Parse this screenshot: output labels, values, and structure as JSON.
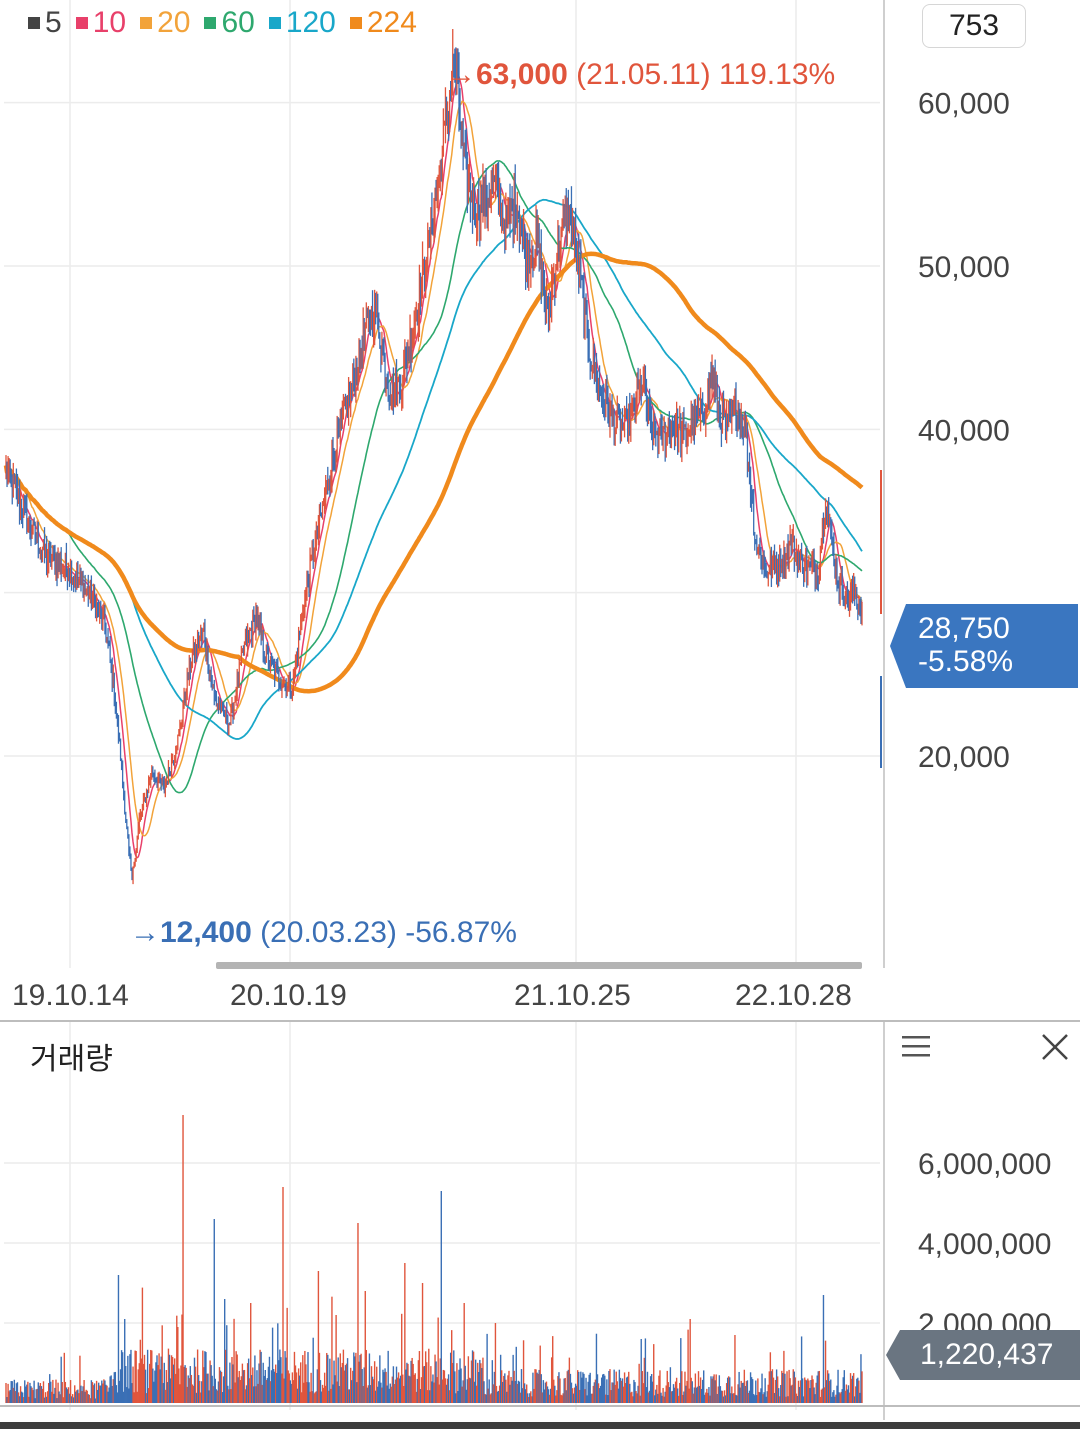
{
  "legend": [
    {
      "label": "5",
      "color": "#444444"
    },
    {
      "label": "10",
      "color": "#e8406a"
    },
    {
      "label": "20",
      "color": "#f2a33a"
    },
    {
      "label": "60",
      "color": "#2ea86e"
    },
    {
      "label": "120",
      "color": "#19a7c9"
    },
    {
      "label": "224",
      "color": "#f08a1c"
    }
  ],
  "period_count": "753",
  "price_panel": {
    "high": {
      "arrow": "→",
      "price": "63,000",
      "date": "(21.05.11)",
      "change": "119.13%"
    },
    "low": {
      "arrow": "→",
      "price": "12,400",
      "date": "(20.03.23)",
      "change": "-56.87%"
    },
    "current": {
      "price": "28,750",
      "change": "-5.58%"
    }
  },
  "volume_panel": {
    "title": "거래량",
    "current": "1,220,437"
  },
  "chart_data": [
    {
      "type": "line",
      "title": "",
      "y_axis": {
        "ticks": [
          "20,000",
          "40,000",
          "50,000",
          "60,000"
        ],
        "position": "right"
      },
      "x_axis": {
        "ticks": [
          "19.10.14",
          "20.10.19",
          "21.10.25",
          "22.10.28"
        ]
      },
      "grid": true,
      "ylim": [
        8000,
        67000
      ],
      "price_anchors": [
        [
          0,
          37500
        ],
        [
          20,
          34500
        ],
        [
          40,
          32000
        ],
        [
          60,
          31500
        ],
        [
          80,
          30000
        ],
        [
          95,
          28000
        ],
        [
          103,
          24500
        ],
        [
          110,
          20000
        ],
        [
          118,
          14000
        ],
        [
          121,
          12400
        ],
        [
          128,
          16000
        ],
        [
          140,
          19000
        ],
        [
          152,
          18000
        ],
        [
          165,
          21000
        ],
        [
          178,
          26000
        ],
        [
          190,
          27500
        ],
        [
          200,
          23500
        ],
        [
          215,
          22000
        ],
        [
          228,
          26500
        ],
        [
          240,
          28500
        ],
        [
          250,
          26000
        ],
        [
          265,
          24500
        ],
        [
          275,
          24000
        ],
        [
          285,
          29000
        ],
        [
          300,
          34000
        ],
        [
          315,
          38500
        ],
        [
          325,
          41000
        ],
        [
          335,
          43000
        ],
        [
          345,
          46000
        ],
        [
          355,
          47500
        ],
        [
          362,
          44500
        ],
        [
          370,
          42000
        ],
        [
          380,
          43000
        ],
        [
          395,
          47500
        ],
        [
          405,
          51000
        ],
        [
          415,
          55000
        ],
        [
          425,
          60000
        ],
        [
          430,
          63000
        ],
        [
          440,
          56000
        ],
        [
          450,
          53500
        ],
        [
          460,
          54000
        ],
        [
          470,
          55000
        ],
        [
          480,
          52500
        ],
        [
          490,
          54000
        ],
        [
          500,
          50500
        ],
        [
          510,
          51500
        ],
        [
          520,
          47000
        ],
        [
          530,
          51000
        ],
        [
          540,
          53500
        ],
        [
          550,
          50000
        ],
        [
          560,
          45000
        ],
        [
          570,
          42500
        ],
        [
          580,
          41000
        ],
        [
          590,
          40000
        ],
        [
          600,
          40500
        ],
        [
          610,
          43000
        ],
        [
          620,
          40000
        ],
        [
          630,
          39500
        ],
        [
          640,
          40500
        ],
        [
          650,
          39500
        ],
        [
          660,
          40500
        ],
        [
          670,
          41000
        ],
        [
          678,
          43500
        ],
        [
          685,
          41000
        ],
        [
          693,
          40000
        ],
        [
          700,
          41500
        ],
        [
          710,
          40000
        ],
        [
          720,
          33000
        ],
        [
          728,
          31500
        ],
        [
          736,
          31500
        ],
        [
          746,
          32000
        ],
        [
          754,
          33000
        ],
        [
          762,
          32000
        ],
        [
          770,
          31500
        ],
        [
          780,
          31500
        ],
        [
          787,
          36000
        ],
        [
          793,
          33000
        ],
        [
          800,
          30500
        ],
        [
          808,
          29500
        ],
        [
          815,
          30000
        ],
        [
          822,
          28750
        ]
      ],
      "ma_periods": [
        5,
        10,
        20,
        60,
        120,
        224
      ],
      "note": "daily candles; moving averages computed from closes"
    },
    {
      "type": "bar",
      "title": "거래량",
      "y_axis": {
        "ticks": [
          "2,000,000",
          "4,000,000",
          "6,000,000"
        ],
        "position": "right"
      },
      "ylim": [
        0,
        7500000
      ],
      "spikes": [
        [
          108,
          3200000
        ],
        [
          114,
          2100000
        ],
        [
          165,
          1900000
        ],
        [
          170,
          7200000
        ],
        [
          200,
          4600000
        ],
        [
          210,
          2600000
        ],
        [
          235,
          2500000
        ],
        [
          266,
          5400000
        ],
        [
          300,
          3300000
        ],
        [
          317,
          2200000
        ],
        [
          338,
          4500000
        ],
        [
          345,
          2800000
        ],
        [
          383,
          3500000
        ],
        [
          400,
          3000000
        ],
        [
          418,
          5300000
        ],
        [
          440,
          2500000
        ],
        [
          470,
          2000000
        ],
        [
          610,
          1600000
        ],
        [
          657,
          2100000
        ],
        [
          700,
          1700000
        ],
        [
          785,
          2700000
        ],
        [
          821,
          1220437
        ]
      ]
    }
  ]
}
